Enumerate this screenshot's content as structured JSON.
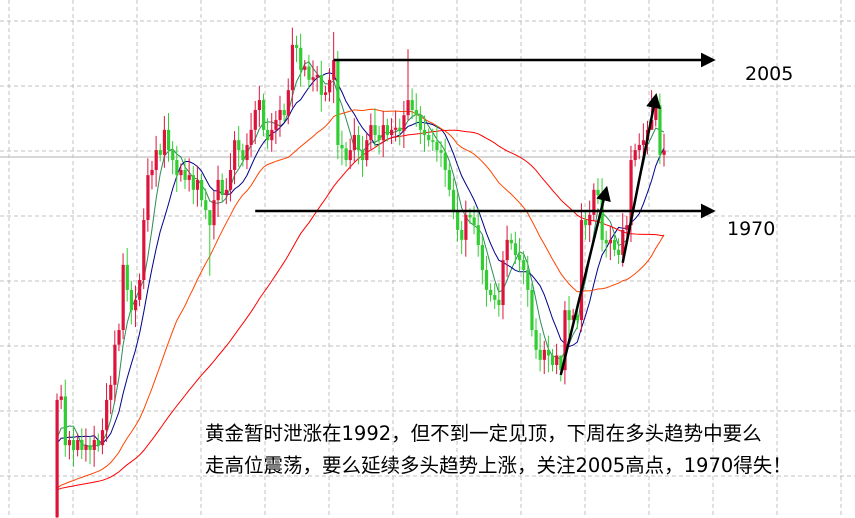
{
  "chart_data": {
    "type": "candlestick",
    "title": "",
    "xlabel": "",
    "ylabel": "",
    "grid": true,
    "up_color": "#dc143c",
    "down_color": "#32cd32",
    "ma_colors": [
      "#2e8b57",
      "#00008b",
      "#ff4500",
      "#ff0000"
    ],
    "start_open": 1899,
    "closes": [
      1926.2,
      1927,
      1915.7,
      1916.9,
      1914.6,
      1916.9,
      1914.6,
      1915.7,
      1914.6,
      1916.9,
      1915.7,
      1919.2,
      1926.2,
      1929.7,
      1939.0,
      1942.4,
      1957.5,
      1951.7,
      1947.0,
      1949.4,
      1954.0,
      1967.9,
      1978.3,
      1979.5,
      1984.1,
      1983.0,
      1988.8,
      1984.1,
      1981.8,
      1978.3,
      1979.5,
      1977.2,
      1978.3,
      1974.9,
      1977.2,
      1972.5,
      1970.2,
      1966.7,
      1972.5,
      1977.2,
      1973.7,
      1974.9,
      1979.5,
      1986.4,
      1984.1,
      1981.8,
      1985.3,
      1988.8,
      1993.4,
      1995.7,
      1988.8,
      1986.4,
      1988.8,
      1991.1,
      1993.4,
      1992.2,
      1998.0,
      2008.5,
      2007.8,
      2002.7,
      2003.5,
      2000.4,
      2001,
      2001.5,
      1996.9,
      1997.5,
      2000.4,
      2005,
      1985.3,
      1984.5,
      1981.8,
      1984.1,
      1987.6,
      1984.1,
      1981.8,
      1986.4,
      1989.9,
      1987.6,
      1986.4,
      1989.9,
      1987.6,
      1988.8,
      1989.3,
      1988.5,
      1992.2,
      1995.7,
      1993.4,
      1992.2,
      1988.8,
      1987.6,
      1986.4,
      1986,
      1984.1,
      1983.5,
      1979.5,
      1974.9,
      1970.2,
      1965.6,
      1963.3,
      1969.1,
      1968.5,
      1966.7,
      1962.1,
      1956.3,
      1951.7,
      1950.5,
      1949.4,
      1948.2,
      1958.6,
      1963.3,
      1962.5,
      1959.8,
      1958.6,
      1956.3,
      1951.7,
      1942.4,
      1937.8,
      1935.5,
      1937.8,
      1936.5,
      1934.3,
      1936.5,
      1933.1,
      1947.0,
      1944.7,
      1945.8,
      1944.7,
      1967.9,
      1966.7,
      1969.1,
      1974.9,
      1973.7,
      1963.3,
      1962.5,
      1963.3,
      1961.0,
      1959.8,
      1965.6,
      1966.7,
      1981.8,
      1984.1,
      1985.3,
      1986.4,
      1988.8,
      1991.1,
      1994.5,
      1983.0,
      1984
    ],
    "notable_wicks": [
      {
        "index": 26,
        "high": 1992,
        "low": 1980
      },
      {
        "index": 57,
        "high": 2012.5,
        "low": 1994
      },
      {
        "index": 67,
        "high": 2011.5,
        "low": 1995
      },
      {
        "index": 37,
        "high": 1968,
        "low": 1955
      },
      {
        "index": 85,
        "high": 2007.5,
        "low": 1991
      },
      {
        "index": 122,
        "high": 1935,
        "low": 1930.5
      },
      {
        "index": 144,
        "high": 1998,
        "low": 1990
      }
    ],
    "current_price": 1982.5,
    "levels": [
      {
        "label": "2005",
        "price": 2005,
        "from_index": 67
      },
      {
        "label": "1970",
        "price": 1970,
        "from_index": 48
      }
    ],
    "trend_arrows": [
      {
        "from": {
          "index": 122,
          "price": 1932
        },
        "to": {
          "index": 133,
          "price": 1975
        }
      },
      {
        "from": {
          "index": 137,
          "price": 1958
        },
        "to": {
          "index": 145,
          "price": 1996.5
        }
      }
    ],
    "annotation": [
      "黄金暂时泄涨在1992，但不到一定见顶，下周在多头趋势中要么",
      "走高位震荡，要么延续多头趋势上涨，关注2005高点，1970得失！"
    ]
  }
}
